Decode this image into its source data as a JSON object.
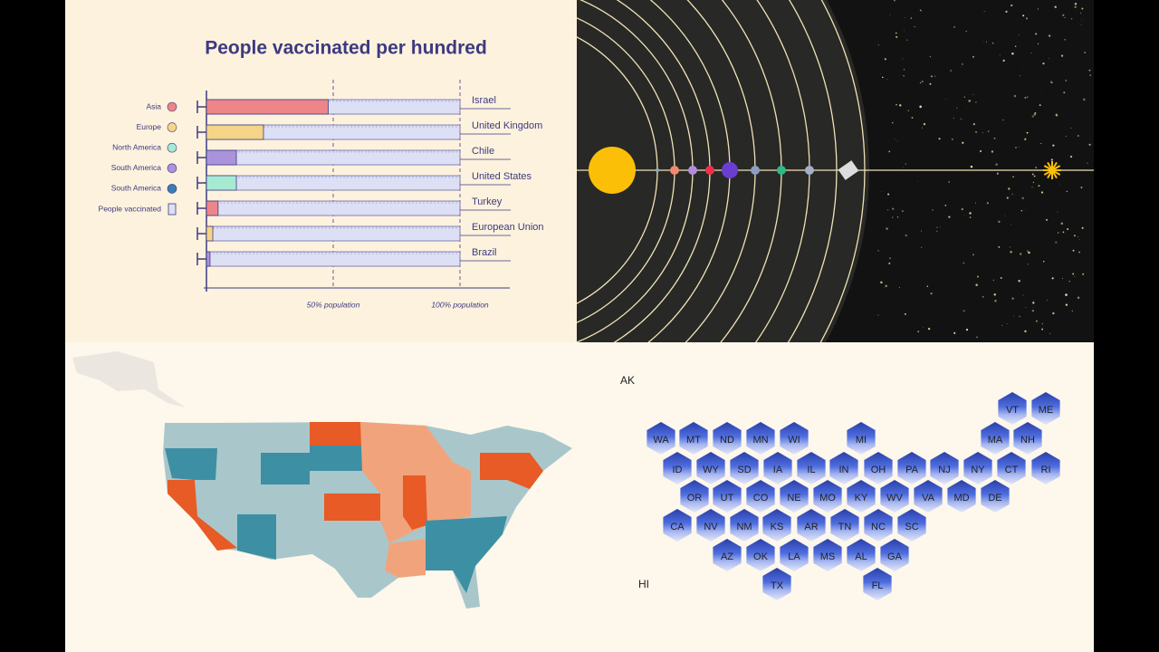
{
  "chart_data": {
    "type": "bar",
    "title": "People vaccinated per hundred",
    "categories": [
      "Israel",
      "United Kingdom",
      "Chile",
      "United States",
      "Turkey",
      "European Union",
      "Brazil"
    ],
    "values": [
      48,
      22.5,
      11.8,
      11.8,
      4.6,
      2.5,
      1.4
    ],
    "colors": [
      "#ee8588",
      "#f6d488",
      "#ab93dc",
      "#a6ead3",
      "#ee8588",
      "#f6d488",
      "#ab93dc"
    ],
    "xlim": [
      0,
      120
    ],
    "xticks": [
      {
        "value": 50,
        "label": "50% population"
      },
      {
        "value": 100,
        "label": "100% population"
      }
    ],
    "legend": [
      {
        "name": "Asia",
        "color": "#ee8588"
      },
      {
        "name": "Europe",
        "color": "#f6d488"
      },
      {
        "name": "North America",
        "color": "#a6ead3"
      },
      {
        "name": "South America",
        "color": "#ab93dc"
      },
      {
        "name": "South America",
        "color": "#3a7cb4"
      },
      {
        "name": "People vaccinated"
      }
    ]
  },
  "hex_map": {
    "alaska": "AK",
    "hawaii": "HI",
    "states": [
      "VT",
      "ME",
      "WA",
      "MT",
      "ND",
      "MN",
      "WI",
      "MI",
      "MA",
      "NH",
      "ID",
      "WY",
      "SD",
      "IA",
      "IL",
      "IN",
      "OH",
      "PA",
      "NJ",
      "NY",
      "CT",
      "RI",
      "OR",
      "UT",
      "CO",
      "NE",
      "MO",
      "KY",
      "WV",
      "VA",
      "MD",
      "DE",
      "CA",
      "NV",
      "NM",
      "KS",
      "AR",
      "TN",
      "NC",
      "SC",
      "AZ",
      "OK",
      "LA",
      "MS",
      "AL",
      "GA",
      "TX",
      "FL"
    ]
  }
}
